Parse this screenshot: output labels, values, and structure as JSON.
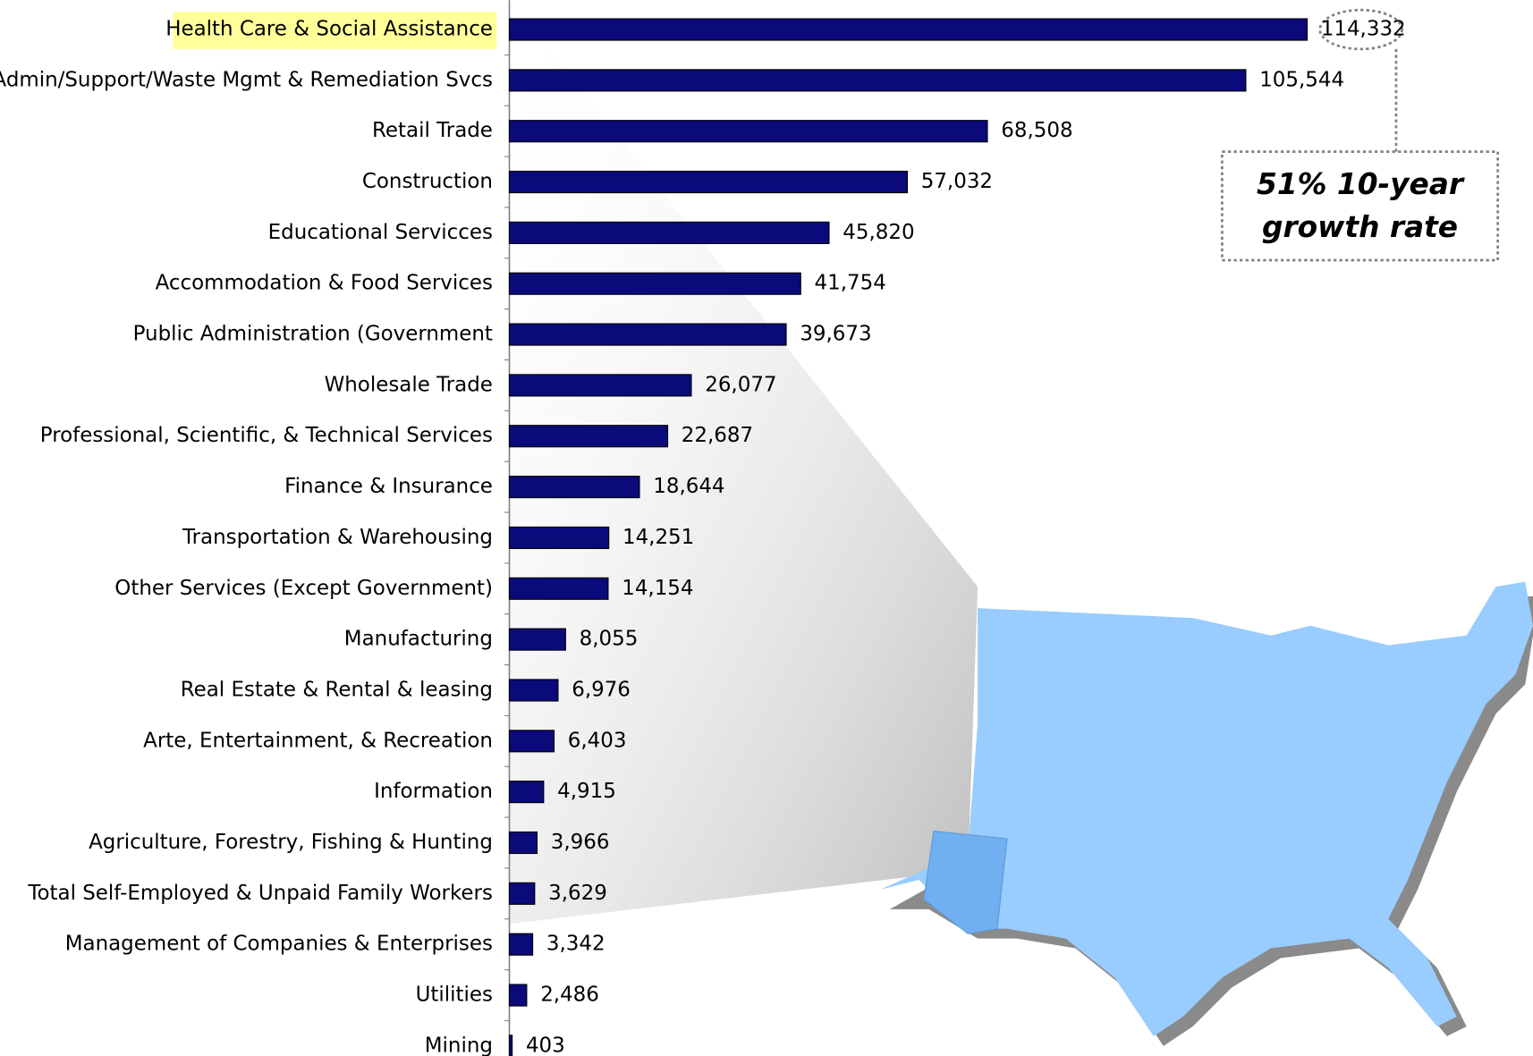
{
  "chart_data": {
    "type": "hbar",
    "categories": [
      "Health Care & Social Assistance",
      "Admin/Support/Waste Mgmt & Remediation Svcs",
      "Retail Trade",
      "Construction",
      "Educational Servicces",
      "Accommodation & Food Services",
      "Public Administration (Government",
      "Wholesale Trade",
      "Professional, Scientific, & Technical Services",
      "Finance & Insurance",
      "Transportation & Warehousing",
      "Other Services (Except Government)",
      "Manufacturing",
      "Real Estate & Rental & leasing",
      "Arte, Entertainment,  & Recreation",
      "Information",
      "Agriculture, Forestry, Fishing & Hunting",
      "Total Self-Employed & Unpaid Family Workers",
      "Management of Companies & Enterprises",
      "Utilities",
      "Mining"
    ],
    "values": [
      114332,
      105544,
      68508,
      57032,
      45820,
      41754,
      39673,
      26077,
      22687,
      18644,
      14251,
      14154,
      8055,
      6976,
      6403,
      4915,
      3966,
      3629,
      3342,
      2486,
      403
    ],
    "value_labels": [
      "114,332",
      "105,544",
      "68,508",
      "57,032",
      "45,820",
      "41,754",
      "39,673",
      "26,077",
      "22,687",
      "18,644",
      "14,251",
      "14,154",
      "8,055",
      "6,976",
      "6,403",
      "4,915",
      "3,966",
      "3,629",
      "3,342",
      "2,486",
      "403"
    ],
    "color": "#0a0a7a",
    "annotation": [
      "51% 10-year",
      "growth rate"
    ]
  }
}
